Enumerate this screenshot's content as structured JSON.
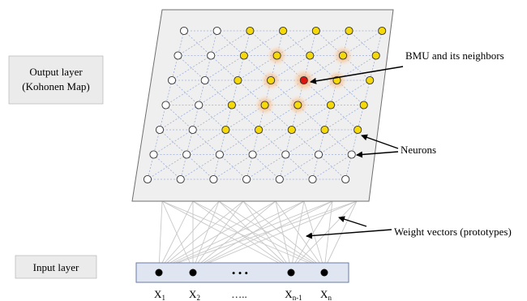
{
  "output_layer": {
    "line1": "Output layer",
    "line2": "(Kohonen Map)"
  },
  "input_layer": {
    "label": "Input layer"
  },
  "annotations": {
    "bmu": "BMU and its neighbors",
    "neurons": "Neurons",
    "weights": "Weight vectors (prototypes)"
  },
  "inputs": {
    "x1": {
      "base": "X",
      "sub": "1"
    },
    "x2": {
      "base": "X",
      "sub": "2"
    },
    "ellipsis": "…..",
    "xn1": {
      "base": "X",
      "sub": "n-1"
    },
    "xn": {
      "base": "X",
      "sub": "n"
    },
    "dots_between": "• • •"
  },
  "grid": {
    "rows": 7,
    "cols": 7
  },
  "neuron_states": [
    [
      "empty",
      "empty",
      "yellow",
      "yellow",
      "yellow",
      "yellow",
      "yellow"
    ],
    [
      "empty",
      "empty",
      "yellow",
      "glow",
      "yellow",
      "glow",
      "yellow"
    ],
    [
      "empty",
      "empty",
      "yellow",
      "glow",
      "bmu",
      "glow",
      "yellow"
    ],
    [
      "empty",
      "empty",
      "yellow",
      "glow",
      "glow",
      "yellow",
      "yellow"
    ],
    [
      "empty",
      "empty",
      "yellow",
      "yellow",
      "yellow",
      "yellow",
      "yellow"
    ],
    [
      "empty",
      "empty",
      "empty",
      "empty",
      "empty",
      "empty",
      "empty"
    ],
    [
      "empty",
      "empty",
      "empty",
      "empty",
      "empty",
      "empty",
      "empty"
    ]
  ],
  "colors": {
    "neuron_yellow": "#f5d90a",
    "bmu_red": "#e0140f",
    "glow": "#f7b27a",
    "grid_line": "#9db0d8",
    "plane_fill": "#efefef",
    "input_bar_fill": "#dfe6f2"
  }
}
